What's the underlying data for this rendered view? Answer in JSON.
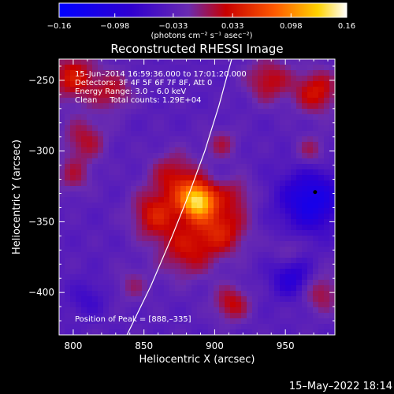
{
  "colorbar": {
    "ticks": [
      "−0.16",
      "−0.098",
      "−0.033",
      "0.033",
      "0.098",
      "0.16"
    ],
    "tick_values": [
      -0.16,
      -0.098,
      -0.033,
      0.033,
      0.098,
      0.16
    ],
    "range": [
      -0.16,
      0.16
    ],
    "units_label": "(photons cm⁻² s⁻¹ asec⁻²)"
  },
  "chart_data": {
    "type": "heatmap",
    "title": "Reconstructed RHESSI Image",
    "xlabel": "Heliocentric X (arcsec)",
    "ylabel": "Heliocentric Y (arcsec)",
    "xlim": [
      790,
      985
    ],
    "ylim": [
      -430,
      -235
    ],
    "x_ticks": [
      800,
      850,
      900,
      950
    ],
    "x_tick_labels": [
      "800",
      "850",
      "900",
      "950"
    ],
    "y_ticks": [
      -250,
      -300,
      -350,
      -400
    ],
    "y_tick_labels": [
      "−250",
      "−300",
      "−350",
      "−400"
    ],
    "colormap": "red-temperature (blue to purple to red to yellow to white)",
    "annotations": [
      "15–Jun–2014 16:59:36.000 to 17:01:20.000",
      "Detectors: 3F 4F 5F 6F 7F 8F, Att 0",
      "Energy Range: 3.0 – 6.0 keV",
      "Clean     Total counts: 1.29E+04"
    ],
    "peak_label": "Position of Peak = [888,–335]",
    "peak": {
      "x": 888,
      "y": -335
    },
    "sources": [
      {
        "x": 888,
        "y": -335,
        "sigma": 9,
        "amp": 0.16
      },
      {
        "x": 872,
        "y": -318,
        "sigma": 12,
        "amp": 0.06
      },
      {
        "x": 858,
        "y": -345,
        "sigma": 12,
        "amp": 0.07
      },
      {
        "x": 905,
        "y": -355,
        "sigma": 13,
        "amp": 0.07
      },
      {
        "x": 880,
        "y": -370,
        "sigma": 14,
        "amp": 0.06
      },
      {
        "x": 915,
        "y": -330,
        "sigma": 9,
        "amp": 0.04
      },
      {
        "x": 905,
        "y": -295,
        "sigma": 8,
        "amp": 0.04
      },
      {
        "x": 800,
        "y": -248,
        "sigma": 12,
        "amp": 0.07
      },
      {
        "x": 828,
        "y": -258,
        "sigma": 10,
        "amp": 0.05
      },
      {
        "x": 808,
        "y": -292,
        "sigma": 11,
        "amp": 0.05
      },
      {
        "x": 800,
        "y": -318,
        "sigma": 9,
        "amp": 0.04
      },
      {
        "x": 938,
        "y": -250,
        "sigma": 11,
        "amp": 0.06
      },
      {
        "x": 972,
        "y": -258,
        "sigma": 11,
        "amp": 0.07
      },
      {
        "x": 968,
        "y": -300,
        "sigma": 8,
        "amp": 0.04
      },
      {
        "x": 912,
        "y": -408,
        "sigma": 9,
        "amp": 0.06
      },
      {
        "x": 975,
        "y": -400,
        "sigma": 10,
        "amp": 0.05
      },
      {
        "x": 952,
        "y": -370,
        "sigma": 7,
        "amp": 0.03
      },
      {
        "x": 842,
        "y": -395,
        "sigma": 9,
        "amp": 0.03
      },
      {
        "x": 968,
        "y": -335,
        "sigma": 15,
        "amp": -0.09
      },
      {
        "x": 955,
        "y": -390,
        "sigma": 10,
        "amp": -0.06
      },
      {
        "x": 810,
        "y": -405,
        "sigma": 9,
        "amp": -0.03
      }
    ],
    "limb_curve": [
      [
        838,
        -430
      ],
      [
        855,
        -395
      ],
      [
        870,
        -360
      ],
      [
        882,
        -330
      ],
      [
        893,
        -300
      ],
      [
        903,
        -268
      ],
      [
        912,
        -235
      ]
    ]
  },
  "footer": {
    "timestamp": "15–May–2022 18:14"
  }
}
